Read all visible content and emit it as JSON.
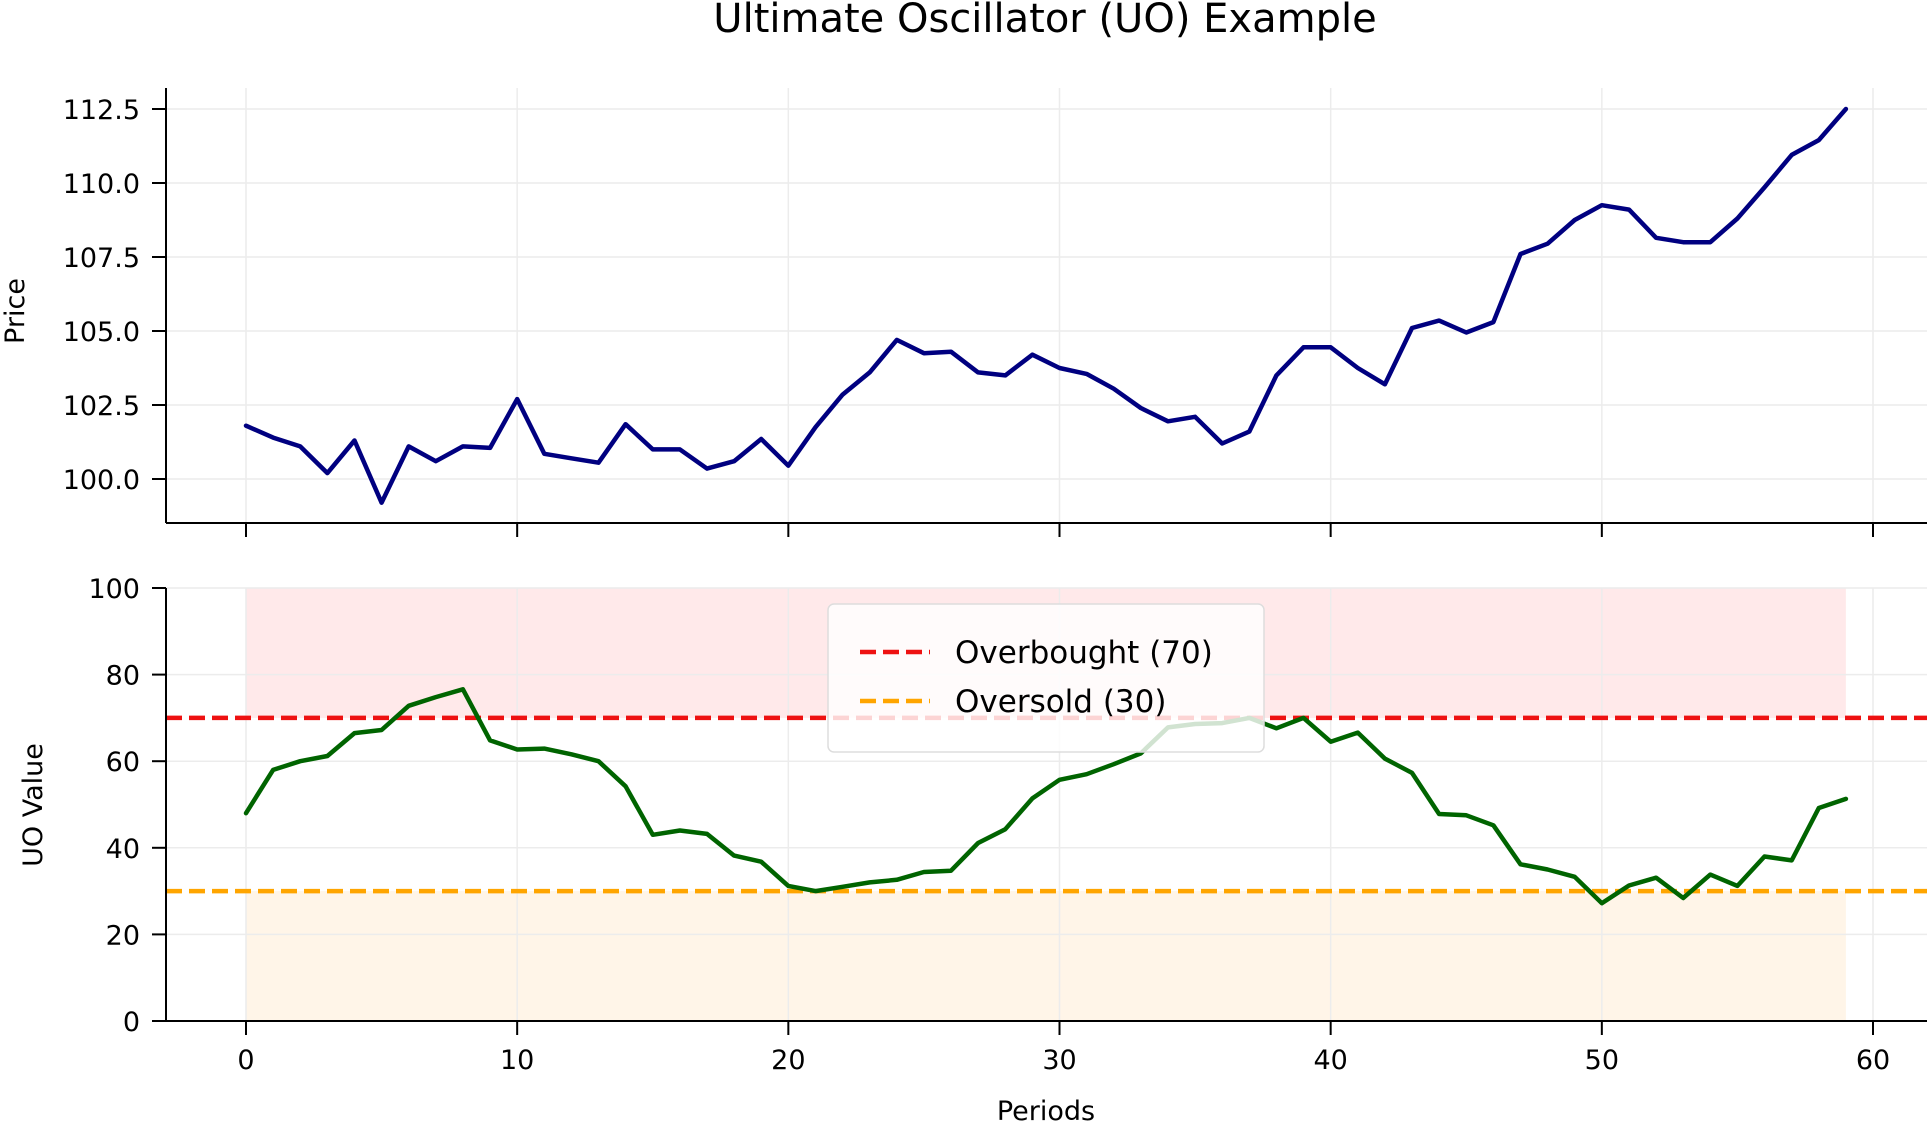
{
  "title": "Ultimate Oscillator (UO) Example",
  "chart_data": [
    {
      "type": "line",
      "ylabel": "Price",
      "xlim": [
        -3,
        62
      ],
      "ylim": [
        98.6,
        113.2
      ],
      "yticks": [
        "100.0",
        "102.5",
        "105.0",
        "107.5",
        "110.0",
        "112.5"
      ],
      "xticks": [
        0,
        10,
        20,
        30,
        40,
        50,
        60
      ],
      "grid": true,
      "series": [
        {
          "color": "#000080",
          "x": [
            0,
            1,
            2,
            3,
            4,
            5,
            6,
            7,
            8,
            9,
            10,
            11,
            12,
            13,
            14,
            15,
            16,
            17,
            18,
            19,
            20,
            21,
            22,
            23,
            24,
            25,
            26,
            27,
            28,
            29,
            30,
            31,
            32,
            33,
            34,
            35,
            36,
            37,
            38,
            39,
            40,
            41,
            42,
            43,
            44,
            45,
            46,
            47,
            48,
            49,
            50,
            51,
            52,
            53,
            54,
            55,
            56,
            57,
            58,
            59
          ],
          "values": [
            101.8,
            101.4,
            101.1,
            100.2,
            101.3,
            99.2,
            101.1,
            100.6,
            101.1,
            101.05,
            102.7,
            100.85,
            100.7,
            100.55,
            101.85,
            101.0,
            101.0,
            100.35,
            100.6,
            101.35,
            100.45,
            101.75,
            102.85,
            103.6,
            104.7,
            104.25,
            104.3,
            103.6,
            103.5,
            104.2,
            103.75,
            103.55,
            103.05,
            102.4,
            101.95,
            102.1,
            101.2,
            101.6,
            103.5,
            104.45,
            104.45,
            103.75,
            103.2,
            105.1,
            105.35,
            104.95,
            105.3,
            107.6,
            107.95,
            108.75,
            109.25,
            109.1,
            108.15,
            108.0,
            108.0,
            108.8,
            109.85,
            110.95,
            111.45,
            112.5
          ]
        }
      ]
    },
    {
      "type": "line",
      "xlabel": "Periods",
      "ylabel": "UO Value",
      "xlim": [
        -3,
        62
      ],
      "ylim": [
        0,
        100
      ],
      "yticks": [
        "0",
        "20",
        "40",
        "60",
        "80",
        "100"
      ],
      "xticks": [
        "0",
        "10",
        "20",
        "30",
        "40",
        "50",
        "60"
      ],
      "grid": true,
      "legend": "top-center",
      "bands": [
        {
          "from": 70,
          "to": 100,
          "x": [
            0,
            59
          ],
          "color": "#ffe9ea"
        },
        {
          "from": 0,
          "to": 30,
          "x": [
            0,
            59
          ],
          "color": "#fff5e8"
        }
      ],
      "reference_lines": [
        {
          "name": "Overbought (70)",
          "y": 70,
          "color": "#ee1111",
          "style": "dashed"
        },
        {
          "name": "Oversold (30)",
          "y": 30,
          "color": "#ffa500",
          "style": "dashed"
        }
      ],
      "series": [
        {
          "color": "#006400",
          "x": [
            0,
            1,
            2,
            3,
            4,
            5,
            6,
            7,
            8,
            9,
            10,
            11,
            12,
            13,
            14,
            15,
            16,
            17,
            18,
            19,
            20,
            21,
            22,
            23,
            24,
            25,
            26,
            27,
            28,
            29,
            30,
            31,
            32,
            33,
            34,
            35,
            36,
            37,
            38,
            39,
            40,
            41,
            42,
            43,
            44,
            45,
            46,
            47,
            48,
            49,
            50,
            51,
            52,
            53,
            54,
            55,
            56,
            57,
            58,
            59
          ],
          "values": [
            48,
            58,
            60,
            61.2,
            66.5,
            67.2,
            72.8,
            74.8,
            76.6,
            64.8,
            62.7,
            62.9,
            61.6,
            60,
            54.2,
            43,
            44,
            43.2,
            38.2,
            36.8,
            31.2,
            30,
            31,
            32,
            32.6,
            34.4,
            34.7,
            41.1,
            44.3,
            51.4,
            55.7,
            57,
            59.3,
            61.8,
            67.8,
            68.6,
            68.8,
            70,
            67.6,
            70,
            64.5,
            66.6,
            60.6,
            57.3,
            47.8,
            47.5,
            45.2,
            36.2,
            35,
            33.3,
            27.2,
            31.3,
            33.1,
            28.4,
            33.8,
            31.2,
            38,
            37.1,
            49.2,
            51.3
          ]
        }
      ]
    }
  ]
}
